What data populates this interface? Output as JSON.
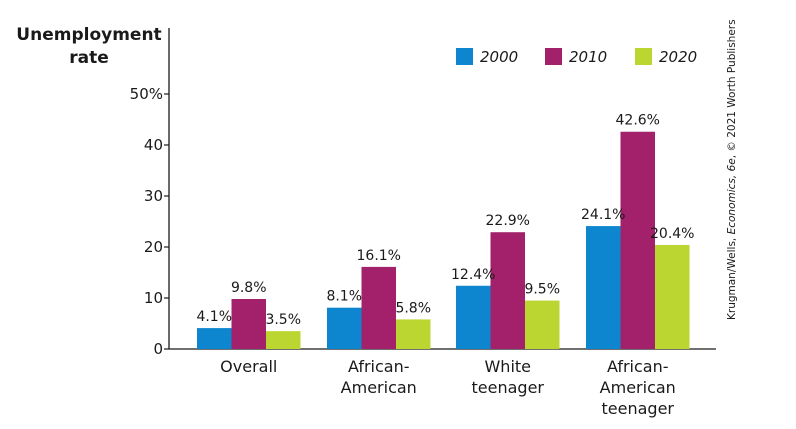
{
  "chart_data": {
    "type": "bar",
    "title": "",
    "ylabel_lines": [
      "Unemployment",
      "rate"
    ],
    "xlabel": "",
    "ylim": [
      0,
      50
    ],
    "yticks": [
      0,
      10,
      20,
      30,
      40,
      50
    ],
    "ytick_labels": [
      "0",
      "10",
      "20",
      "30",
      "40",
      "50%"
    ],
    "categories": [
      [
        "Overall"
      ],
      [
        "African-",
        "American"
      ],
      [
        "White",
        "teenager"
      ],
      [
        "African-",
        "American",
        "teenager"
      ]
    ],
    "series": [
      {
        "name": "2000",
        "color": "#0d86cf",
        "values": [
          4.1,
          8.1,
          12.4,
          24.1
        ],
        "labels": [
          "4.1%",
          "8.1%",
          "12.4%",
          "24.1%"
        ]
      },
      {
        "name": "2010",
        "color": "#a3216a",
        "values": [
          9.8,
          16.1,
          22.9,
          42.6
        ],
        "labels": [
          "9.8%",
          "16.1%",
          "22.9%",
          "42.6%"
        ]
      },
      {
        "name": "2020",
        "color": "#bcd631",
        "values": [
          3.5,
          5.8,
          9.5,
          20.4
        ],
        "labels": [
          "3.5%",
          "5.8%",
          "9.5%",
          "20.4%"
        ]
      }
    ],
    "legend_position": "top-right",
    "grid": false
  },
  "credit": {
    "prefix": "Krugman/Wells, ",
    "italic": "Economics, 6e",
    "suffix": ", © 2021 Worth Publishers"
  }
}
